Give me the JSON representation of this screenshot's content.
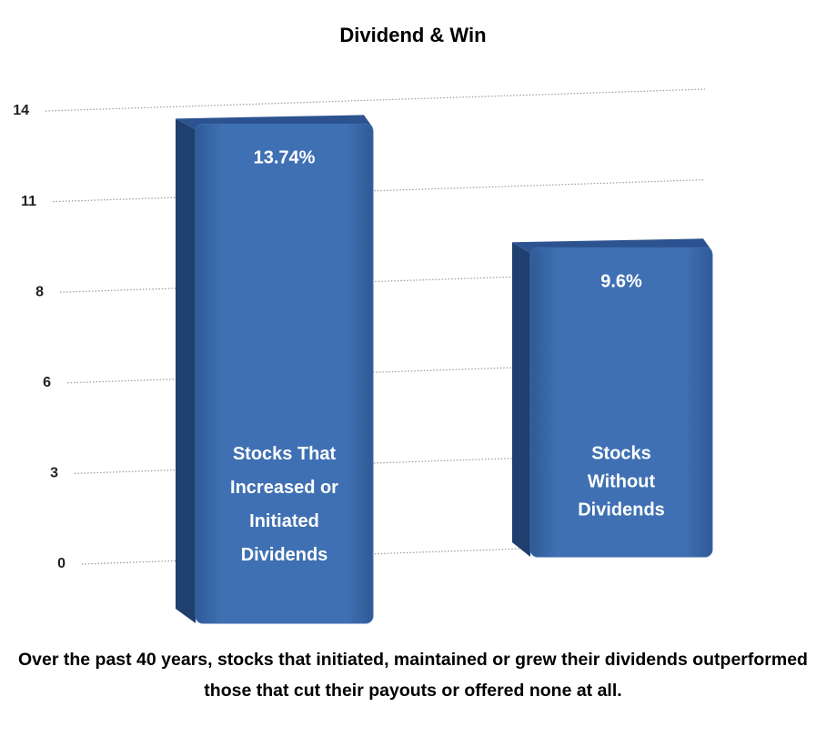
{
  "chart_data": {
    "type": "bar",
    "title": "Dividend & Win",
    "categories": [
      "Stocks That Increased or Initiated Dividends",
      "Stocks Without Dividends"
    ],
    "values": [
      13.74,
      9.6
    ],
    "value_labels": [
      "13.74%",
      "9.6%"
    ],
    "color": "#3d6db0",
    "ylim": [
      0,
      13.75
    ],
    "yticks": [
      0,
      {
        "value": 2.75,
        "label": "3"
      },
      {
        "value": 5.5,
        "label": "6"
      },
      {
        "value": 8.25,
        "label": "8"
      },
      11,
      {
        "value": 13.75,
        "label": "14"
      }
    ],
    "grid": true,
    "caption": "Over the past 40 years, stocks that initiated, maintained or grew their dividends outperformed those that cut their payouts or offered none at all."
  }
}
